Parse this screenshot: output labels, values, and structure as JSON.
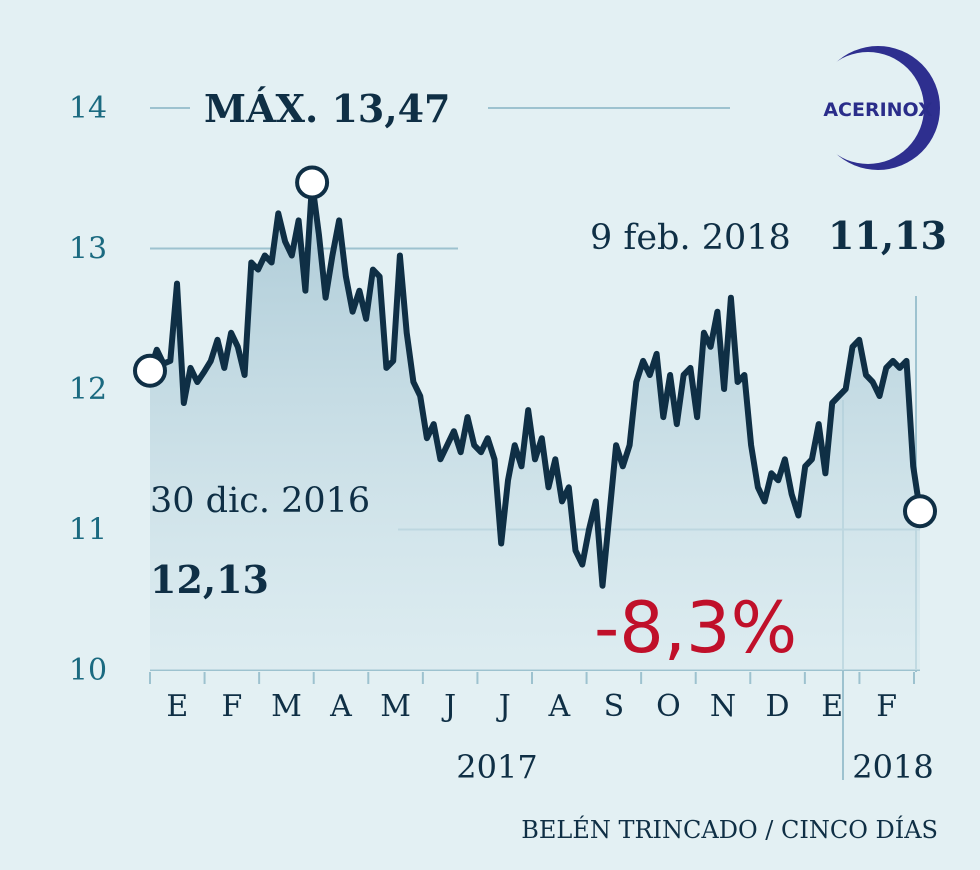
{
  "chart_data": {
    "type": "line",
    "title": "",
    "xlabel": "",
    "ylabel": "",
    "ylim": [
      10,
      14
    ],
    "yticks": [
      10,
      11,
      12,
      13,
      14
    ],
    "grid": true,
    "months": [
      "E",
      "F",
      "M",
      "A",
      "M",
      "J",
      "J",
      "A",
      "S",
      "O",
      "N",
      "D",
      "E",
      "F"
    ],
    "years": [
      "2017",
      "2018"
    ],
    "series": [
      {
        "values": [
          12.13,
          12.28,
          12.18,
          12.2,
          12.75,
          11.9,
          12.15,
          12.05,
          12.12,
          12.2,
          12.35,
          12.15,
          12.4,
          12.3,
          12.1,
          12.9,
          12.85,
          12.95,
          12.9,
          13.25,
          13.05,
          12.95,
          13.2,
          12.7,
          13.47,
          13.1,
          12.65,
          12.95,
          13.2,
          12.8,
          12.55,
          12.7,
          12.5,
          12.85,
          12.8,
          12.15,
          12.2,
          12.95,
          12.4,
          12.05,
          11.95,
          11.65,
          11.75,
          11.5,
          11.6,
          11.7,
          11.55,
          11.8,
          11.6,
          11.55,
          11.65,
          11.5,
          10.9,
          11.35,
          11.6,
          11.45,
          11.85,
          11.5,
          11.65,
          11.3,
          11.5,
          11.2,
          11.3,
          10.85,
          10.75,
          11.0,
          11.2,
          10.6,
          11.1,
          11.6,
          11.45,
          11.6,
          12.05,
          12.2,
          12.1,
          12.25,
          11.8,
          12.1,
          11.75,
          12.1,
          12.15,
          11.8,
          12.4,
          12.3,
          12.55,
          12.0,
          12.65,
          12.05,
          12.1,
          11.6,
          11.3,
          11.2,
          11.4,
          11.35,
          11.5,
          11.25,
          11.1,
          11.45,
          11.5,
          11.75,
          11.4,
          11.9,
          11.95,
          12.0,
          12.3,
          12.35,
          12.1,
          12.05,
          11.95,
          12.15,
          12.2,
          12.15,
          12.2,
          11.45,
          11.13
        ],
        "color": "#0f2f45"
      }
    ],
    "annotations": {
      "max_label": "MÁX. 13,47",
      "max_value": 13.47,
      "start_label": "30 dic. 2016",
      "start_value_label": "12,13",
      "start_value": 12.13,
      "end_label": "9 feb. 2018",
      "end_value_label": "11,13",
      "end_value": 11.13,
      "change_label": "-8,3%"
    }
  },
  "logo": {
    "text": "ACERINOX",
    "color": "#2a2d8a"
  },
  "credit": "BELÉN TRINCADO / CINCO DÍAS",
  "colors": {
    "line": "#0f2f45",
    "area": "#b9d4df",
    "grid": "#9dc2cf",
    "negative": "#c0102a",
    "background": "#e3f0f3"
  }
}
